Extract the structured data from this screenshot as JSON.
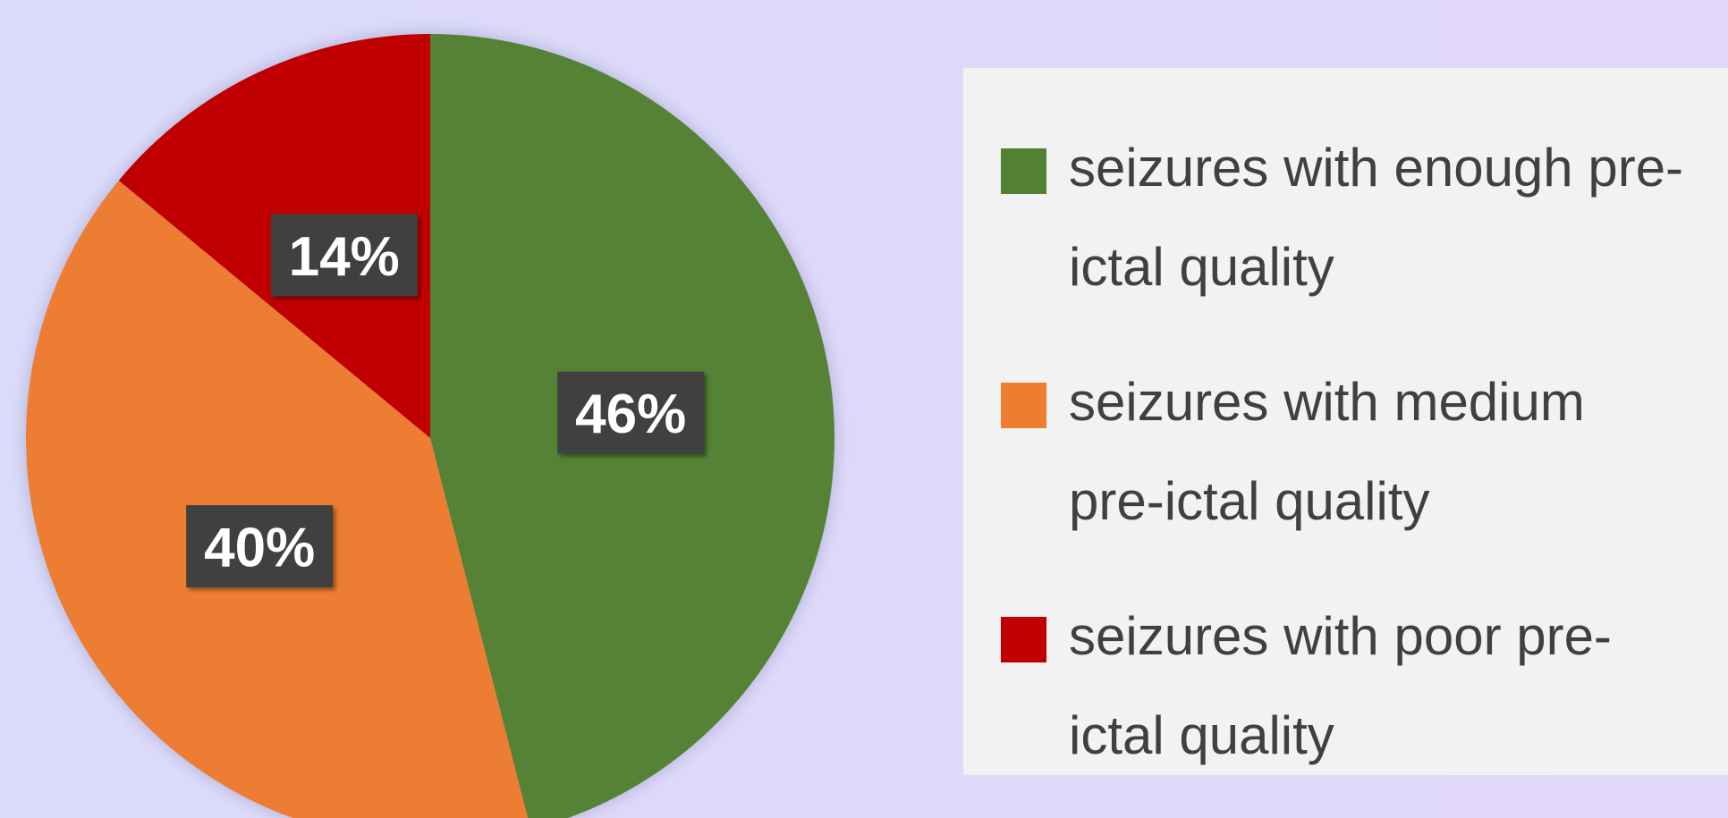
{
  "chart_data": {
    "type": "pie",
    "categories": [
      "seizures with enough pre-ictal quality",
      "seizures with medium pre-ictal quality",
      "seizures with poor pre-ictal quality"
    ],
    "values": [
      46,
      40,
      14
    ],
    "value_labels": [
      "46%",
      "40%",
      "14%"
    ],
    "colors": [
      "#548235",
      "#ed7d31",
      "#c00000"
    ]
  }
}
